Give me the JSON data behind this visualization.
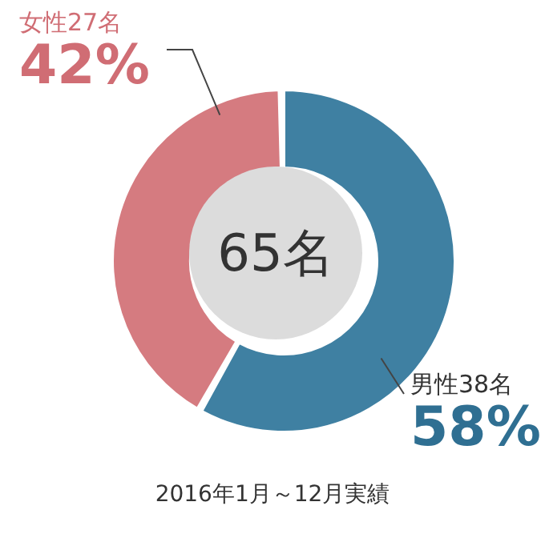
{
  "chart_data": {
    "type": "donut",
    "categories": [
      "男性",
      "女性"
    ],
    "values": [
      38,
      27
    ],
    "colors": [
      "#3f80a2",
      "#d57b80"
    ],
    "value_labels": [
      "38名",
      "27名"
    ],
    "annotations": [
      "65名",
      {
        "text": "58%",
        "x": "男性"
      },
      {
        "text": "42%",
        "x": "女性"
      },
      "2016年1月～12月実績"
    ]
  }
}
